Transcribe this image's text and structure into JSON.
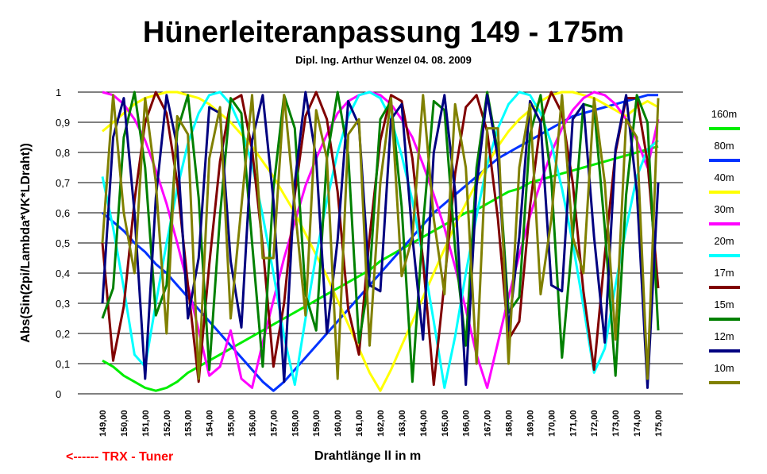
{
  "chart_data": {
    "type": "line",
    "title": "Hünerleiteranpassung 149 - 175m",
    "subtitle": "Dipl. Ing. Arthur Wenzel  04. 08. 2009",
    "xlabel": "Drahtlänge ll in m",
    "ylabel": "Abs(Sin(2pi/Lambda*VK*LDraht))",
    "annotation": "<------ TRX - Tuner",
    "xlim": [
      149,
      175
    ],
    "ylim": [
      0,
      1
    ],
    "x_ticks": [
      "149,00",
      "150,00",
      "151,00",
      "152,00",
      "153,00",
      "154,00",
      "155,00",
      "156,00",
      "157,00",
      "158,00",
      "159,00",
      "160,00",
      "161,00",
      "162,00",
      "163,00",
      "164,00",
      "165,00",
      "166,00",
      "167,00",
      "168,00",
      "169,00",
      "170,00",
      "171,00",
      "172,00",
      "173,00",
      "174,00",
      "175,00"
    ],
    "y_ticks": [
      "0",
      "0,1",
      "0,2",
      "0,3",
      "0,4",
      "0,5",
      "0,6",
      "0,7",
      "0,8",
      "0,9",
      "1"
    ],
    "grid": "horizontal",
    "legend_position": "right",
    "x": [
      149,
      149.5,
      150,
      150.5,
      151,
      151.5,
      152,
      152.5,
      153,
      153.5,
      154,
      154.5,
      155,
      155.5,
      156,
      156.5,
      157,
      157.5,
      158,
      158.5,
      159,
      159.5,
      160,
      160.5,
      161,
      161.5,
      162,
      162.5,
      163,
      163.5,
      164,
      164.5,
      165,
      165.5,
      166,
      166.5,
      167,
      167.5,
      168,
      168.5,
      169,
      169.5,
      170,
      170.5,
      171,
      171.5,
      172,
      172.5,
      173,
      173.5,
      174,
      174.5,
      175
    ],
    "series": [
      {
        "name": "160m",
        "color": "#00ee00",
        "values": [
          0.11,
          0.09,
          0.06,
          0.04,
          0.02,
          0.01,
          0.02,
          0.04,
          0.07,
          0.09,
          0.11,
          0.13,
          0.15,
          0.17,
          0.19,
          0.21,
          0.23,
          0.25,
          0.27,
          0.29,
          0.31,
          0.33,
          0.35,
          0.37,
          0.39,
          0.41,
          0.44,
          0.46,
          0.48,
          0.5,
          0.52,
          0.54,
          0.56,
          0.58,
          0.6,
          0.61,
          0.63,
          0.65,
          0.67,
          0.68,
          0.7,
          0.71,
          0.72,
          0.73,
          0.74,
          0.75,
          0.76,
          0.77,
          0.78,
          0.79,
          0.8,
          0.81,
          0.82
        ]
      },
      {
        "name": "80m",
        "color": "#0033ff",
        "values": [
          0.6,
          0.57,
          0.54,
          0.5,
          0.47,
          0.43,
          0.4,
          0.36,
          0.32,
          0.28,
          0.24,
          0.2,
          0.16,
          0.12,
          0.08,
          0.04,
          0.01,
          0.04,
          0.08,
          0.12,
          0.16,
          0.2,
          0.24,
          0.28,
          0.32,
          0.36,
          0.4,
          0.44,
          0.48,
          0.52,
          0.56,
          0.6,
          0.63,
          0.66,
          0.69,
          0.72,
          0.75,
          0.78,
          0.8,
          0.82,
          0.84,
          0.86,
          0.88,
          0.9,
          0.92,
          0.93,
          0.94,
          0.95,
          0.96,
          0.97,
          0.98,
          0.99,
          0.99
        ]
      },
      {
        "name": "40m",
        "color": "#ffff00",
        "values": [
          0.87,
          0.9,
          0.93,
          0.96,
          0.98,
          0.99,
          1.0,
          1.0,
          0.99,
          0.98,
          0.96,
          0.93,
          0.9,
          0.86,
          0.82,
          0.77,
          0.72,
          0.66,
          0.6,
          0.53,
          0.46,
          0.39,
          0.31,
          0.23,
          0.15,
          0.07,
          0.01,
          0.08,
          0.16,
          0.24,
          0.32,
          0.4,
          0.48,
          0.56,
          0.63,
          0.7,
          0.76,
          0.82,
          0.87,
          0.91,
          0.94,
          0.97,
          0.99,
          1.0,
          1.0,
          0.99,
          0.98,
          0.96,
          0.94,
          0.92,
          0.95,
          0.97,
          0.95
        ]
      },
      {
        "name": "30m",
        "color": "#ff00ff",
        "values": [
          1.0,
          0.99,
          0.96,
          0.91,
          0.84,
          0.74,
          0.63,
          0.5,
          0.36,
          0.21,
          0.06,
          0.09,
          0.21,
          0.05,
          0.02,
          0.17,
          0.31,
          0.45,
          0.57,
          0.69,
          0.78,
          0.86,
          0.93,
          0.97,
          0.99,
          1.0,
          0.99,
          0.96,
          0.91,
          0.85,
          0.76,
          0.66,
          0.55,
          0.42,
          0.28,
          0.13,
          0.02,
          0.17,
          0.32,
          0.46,
          0.59,
          0.7,
          0.8,
          0.88,
          0.94,
          0.98,
          1.0,
          0.99,
          0.96,
          0.91,
          0.84,
          0.75,
          0.91
        ]
      },
      {
        "name": "20m",
        "color": "#00ffff",
        "values": [
          0.72,
          0.55,
          0.35,
          0.13,
          0.09,
          0.3,
          0.5,
          0.68,
          0.83,
          0.93,
          0.99,
          1.0,
          0.96,
          0.88,
          0.76,
          0.59,
          0.4,
          0.19,
          0.03,
          0.25,
          0.46,
          0.64,
          0.8,
          0.92,
          0.99,
          1.0,
          0.98,
          0.91,
          0.79,
          0.64,
          0.45,
          0.24,
          0.02,
          0.19,
          0.4,
          0.59,
          0.76,
          0.88,
          0.96,
          1.0,
          0.99,
          0.93,
          0.83,
          0.68,
          0.5,
          0.29,
          0.07,
          0.15,
          0.36,
          0.55,
          0.72,
          0.81,
          0.84
        ]
      },
      {
        "name": "17m",
        "color": "#800000",
        "values": [
          0.5,
          0.11,
          0.29,
          0.64,
          0.9,
          1.0,
          0.93,
          0.7,
          0.36,
          0.04,
          0.43,
          0.77,
          0.97,
          0.99,
          0.81,
          0.49,
          0.09,
          0.3,
          0.66,
          0.92,
          1.0,
          0.91,
          0.67,
          0.28,
          0.13,
          0.52,
          0.84,
          0.99,
          0.97,
          0.78,
          0.44,
          0.03,
          0.37,
          0.73,
          0.95,
          0.99,
          0.87,
          0.58,
          0.18,
          0.24,
          0.62,
          0.9,
          1.0,
          0.93,
          0.7,
          0.34,
          0.08,
          0.46,
          0.8,
          0.98,
          0.98,
          0.77,
          0.35
        ]
      },
      {
        "name": "15m",
        "color": "#008000",
        "values": [
          0.25,
          0.35,
          0.85,
          1.0,
          0.75,
          0.26,
          0.36,
          0.87,
          0.99,
          0.65,
          0.08,
          0.59,
          0.98,
          0.93,
          0.5,
          0.09,
          0.68,
          0.99,
          0.88,
          0.33,
          0.21,
          0.78,
          1.0,
          0.79,
          0.17,
          0.39,
          0.91,
          0.97,
          0.62,
          0.04,
          0.56,
          0.97,
          0.94,
          0.48,
          0.16,
          0.75,
          1.0,
          0.8,
          0.27,
          0.32,
          0.86,
          0.99,
          0.71,
          0.12,
          0.52,
          0.96,
          0.95,
          0.55,
          0.06,
          0.66,
          0.99,
          0.9,
          0.21
        ]
      },
      {
        "name": "12m",
        "color": "#000080",
        "values": [
          0.3,
          0.85,
          0.98,
          0.6,
          0.05,
          0.65,
          0.99,
          0.82,
          0.25,
          0.45,
          0.95,
          0.93,
          0.44,
          0.22,
          0.84,
          0.99,
          0.64,
          0.04,
          0.7,
          1.0,
          0.78,
          0.2,
          0.51,
          0.97,
          0.89,
          0.36,
          0.34,
          0.91,
          0.96,
          0.52,
          0.18,
          0.8,
          0.99,
          0.67,
          0.03,
          0.69,
          0.99,
          0.78,
          0.21,
          0.52,
          0.97,
          0.9,
          0.36,
          0.34,
          0.91,
          0.96,
          0.52,
          0.17,
          0.81,
          0.99,
          0.67,
          0.02,
          0.7
        ]
      },
      {
        "name": "10m",
        "color": "#808000",
        "values": [
          0.5,
          0.99,
          0.6,
          0.4,
          0.98,
          0.7,
          0.2,
          0.92,
          0.86,
          0.05,
          0.78,
          0.95,
          0.25,
          0.62,
          0.99,
          0.45,
          0.45,
          0.99,
          0.62,
          0.26,
          0.94,
          0.78,
          0.05,
          0.86,
          0.91,
          0.16,
          0.7,
          0.98,
          0.39,
          0.52,
          0.99,
          0.58,
          0.33,
          0.96,
          0.75,
          0.1,
          0.88,
          0.88,
          0.1,
          0.75,
          0.96,
          0.33,
          0.58,
          0.99,
          0.52,
          0.4,
          0.98,
          0.7,
          0.18,
          0.91,
          0.85,
          0.05,
          0.98
        ]
      }
    ]
  }
}
